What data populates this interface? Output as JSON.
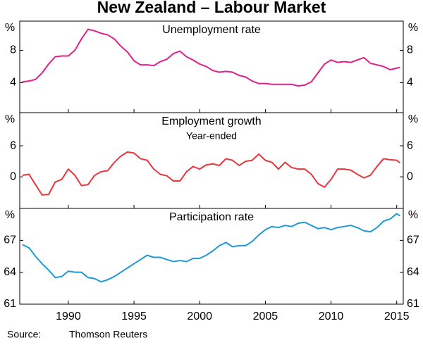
{
  "title": "New Zealand – Labour Market",
  "source_label": "Source:",
  "source": "Thomson Reuters",
  "chart_data": [
    {
      "type": "line",
      "title": "Unemployment rate",
      "y_unit": "%",
      "color": "#e0218a",
      "xlim": [
        1986.3,
        2015.5
      ],
      "xticks": [
        1990,
        1995,
        2000,
        2005,
        2010,
        2015
      ],
      "ylim": [
        0.3,
        11.6
      ],
      "yticks": [
        4,
        8
      ],
      "x": [
        1986.5,
        1987,
        1987.5,
        1988,
        1988.5,
        1989,
        1989.5,
        1990,
        1990.5,
        1991,
        1991.5,
        1992,
        1992.5,
        1993,
        1993.5,
        1994,
        1994.5,
        1995,
        1995.5,
        1996,
        1996.5,
        1997,
        1997.5,
        1998,
        1998.5,
        1999,
        1999.5,
        2000,
        2000.5,
        2001,
        2001.5,
        2002,
        2002.5,
        2003,
        2003.5,
        2004,
        2004.5,
        2005,
        2005.5,
        2006,
        2006.5,
        2007,
        2007.5,
        2008,
        2008.5,
        2009,
        2009.5,
        2010,
        2010.5,
        2011,
        2011.5,
        2012,
        2012.5,
        2013,
        2013.5,
        2014,
        2014.5,
        2015,
        2015.25
      ],
      "values": [
        4.1,
        4.2,
        4.4,
        5.2,
        6.3,
        7.2,
        7.3,
        7.3,
        8.0,
        9.4,
        10.6,
        10.4,
        10.1,
        9.9,
        9.4,
        8.5,
        7.8,
        6.7,
        6.2,
        6.2,
        6.1,
        6.6,
        6.9,
        7.6,
        7.9,
        7.2,
        6.8,
        6.3,
        6.0,
        5.5,
        5.3,
        5.4,
        5.3,
        4.9,
        4.7,
        4.2,
        3.9,
        3.9,
        3.8,
        3.8,
        3.8,
        3.8,
        3.6,
        3.7,
        4.1,
        5.2,
        6.3,
        6.8,
        6.5,
        6.6,
        6.5,
        6.8,
        7.1,
        6.4,
        6.2,
        6.0,
        5.6,
        5.8,
        5.9
      ]
    },
    {
      "type": "line",
      "title": "Employment growth",
      "subtitle": "Year-ended",
      "y_unit": "%",
      "color": "#e8363d",
      "xlim": [
        1986.3,
        2015.5
      ],
      "xticks": [
        1990,
        1995,
        2000,
        2005,
        2010,
        2015
      ],
      "ylim": [
        -6.1,
        12.4
      ],
      "yticks": [
        0,
        6
      ],
      "x": [
        1986.5,
        1987,
        1987.5,
        1988,
        1988.5,
        1989,
        1989.5,
        1990,
        1990.5,
        1991,
        1991.5,
        1992,
        1992.5,
        1993,
        1993.5,
        1994,
        1994.5,
        1995,
        1995.5,
        1996,
        1996.5,
        1997,
        1997.5,
        1998,
        1998.5,
        1999,
        1999.5,
        2000,
        2000.5,
        2001,
        2001.5,
        2002,
        2002.5,
        2003,
        2003.5,
        2004,
        2004.5,
        2005,
        2005.5,
        2006,
        2006.5,
        2007,
        2007.5,
        2008,
        2008.5,
        2009,
        2009.5,
        2010,
        2010.5,
        2011,
        2011.5,
        2012,
        2012.5,
        2013,
        2013.5,
        2014,
        2014.5,
        2015,
        2015.25
      ],
      "values": [
        0.3,
        0.5,
        -1.5,
        -3.5,
        -3.4,
        -1.0,
        -0.5,
        1.5,
        0.3,
        -1.7,
        -1.5,
        0.3,
        1.0,
        1.2,
        2.8,
        4.0,
        4.8,
        4.6,
        3.5,
        3.2,
        1.5,
        0.5,
        0.2,
        -0.8,
        -0.8,
        1.0,
        2.0,
        1.5,
        2.3,
        2.5,
        2.2,
        3.5,
        3.2,
        2.2,
        3.0,
        3.2,
        4.4,
        3.2,
        2.8,
        1.5,
        2.8,
        1.8,
        1.5,
        1.5,
        0.5,
        -1.3,
        -2.0,
        -0.5,
        1.5,
        1.5,
        1.3,
        0.5,
        -0.2,
        0.3,
        2.0,
        3.5,
        3.3,
        3.2,
        2.7
      ]
    },
    {
      "type": "line",
      "title": "Participation rate",
      "y_unit": "%",
      "color": "#1f9ad6",
      "xlim": [
        1986.3,
        2015.5
      ],
      "xticks": [
        1990,
        1995,
        2000,
        2005,
        2010,
        2015
      ],
      "ylim": [
        61,
        70
      ],
      "yticks": [
        61,
        64,
        67
      ],
      "x": [
        1986.5,
        1987,
        1987.5,
        1988,
        1988.5,
        1989,
        1989.5,
        1990,
        1990.5,
        1991,
        1991.5,
        1992,
        1992.5,
        1993,
        1993.5,
        1994,
        1994.5,
        1995,
        1995.5,
        1996,
        1996.5,
        1997,
        1997.5,
        1998,
        1998.5,
        1999,
        1999.5,
        2000,
        2000.5,
        2001,
        2001.5,
        2002,
        2002.5,
        2003,
        2003.5,
        2004,
        2004.5,
        2005,
        2005.5,
        2006,
        2006.5,
        2007,
        2007.5,
        2008,
        2008.5,
        2009,
        2009.5,
        2010,
        2010.5,
        2011,
        2011.5,
        2012,
        2012.5,
        2013,
        2013.5,
        2014,
        2014.5,
        2015,
        2015.25
      ],
      "values": [
        66.6,
        66.3,
        65.5,
        64.8,
        64.2,
        63.5,
        63.6,
        64.1,
        64.0,
        64.0,
        63.5,
        63.4,
        63.1,
        63.3,
        63.6,
        64.0,
        64.4,
        64.8,
        65.2,
        65.6,
        65.4,
        65.4,
        65.2,
        65.0,
        65.1,
        65.0,
        65.3,
        65.3,
        65.6,
        66.0,
        66.5,
        66.8,
        66.4,
        66.5,
        66.5,
        66.9,
        67.5,
        68.0,
        68.3,
        68.2,
        68.4,
        68.3,
        68.6,
        68.7,
        68.4,
        68.1,
        68.2,
        68.0,
        68.2,
        68.3,
        68.4,
        68.2,
        67.9,
        67.8,
        68.2,
        68.8,
        69.0,
        69.5,
        69.3
      ]
    }
  ]
}
